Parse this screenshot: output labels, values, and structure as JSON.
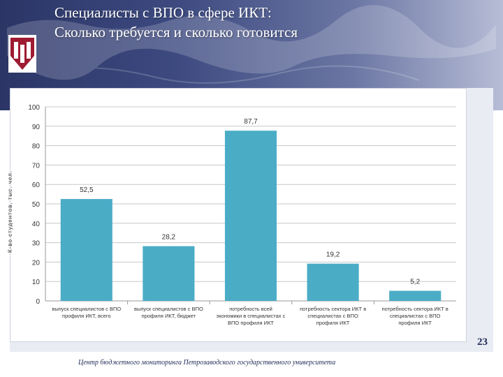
{
  "slide": {
    "title_line1": "Специалисты с ВПО в сфере ИКТ:",
    "title_line2": "Сколько требуется и сколько готовится",
    "page_number": "23",
    "footer": "Центр бюджетного мониторинга Петрозаводского государственного университета"
  },
  "colors": {
    "bar": "#4bacc6",
    "header_dark": "#2b3566",
    "logo_red": "#9e1b32"
  },
  "chart_data": {
    "type": "bar",
    "ylabel": "К-во студентов, тыс. чел.",
    "ylim": [
      0,
      100
    ],
    "yticks": [
      0,
      10,
      20,
      30,
      40,
      50,
      60,
      70,
      80,
      90,
      100
    ],
    "grid": true,
    "categories": [
      [
        "выпуск специалистов с ВПО",
        "профиля ИКТ, всего"
      ],
      [
        "выпуск специалистов с ВПО",
        "профиля ИКТ, бюджет"
      ],
      [
        "потребность всей",
        "экономики в специалистах с",
        "ВПО профиля ИКТ"
      ],
      [
        "потребность сектора ИКТ в",
        "специалистах с ВПО",
        "профиля ИКТ"
      ],
      [
        "потребность сектора ИКТ в",
        "специалистах с ВПО",
        "профиля ИКТ"
      ]
    ],
    "values": [
      52.5,
      28.2,
      87.7,
      19.2,
      5.2
    ],
    "value_labels": [
      "52,5",
      "28,2",
      "87,7",
      "19,2",
      "5,2"
    ]
  }
}
